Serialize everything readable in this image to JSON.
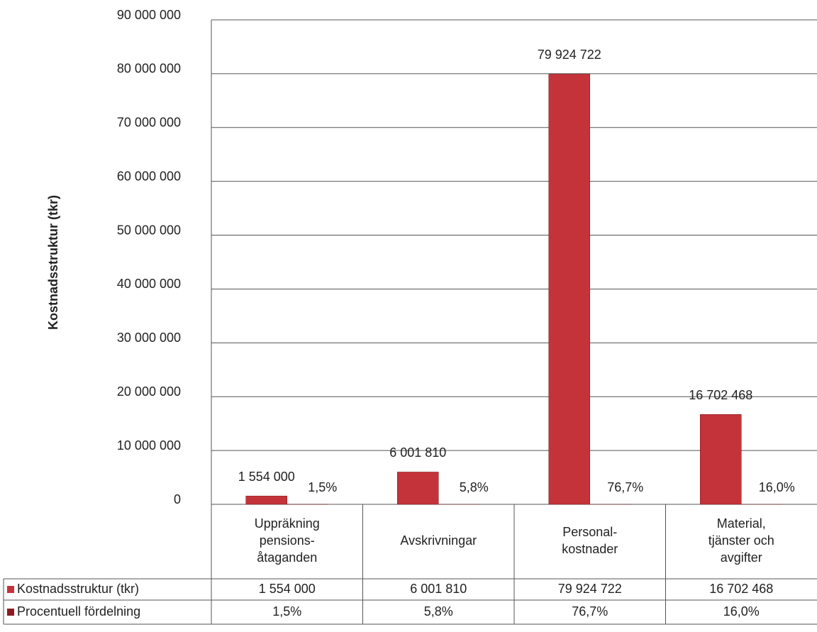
{
  "chart_data": {
    "type": "bar",
    "y_axis_label": "Kostnadsstruktur  (tkr)",
    "categories": [
      [
        "Uppräkning",
        "pensions-",
        "åtaganden"
      ],
      [
        "Avskrivningar"
      ],
      [
        "Personal-",
        "kostnader"
      ],
      [
        "Material,",
        "tjänster och",
        "avgifter"
      ]
    ],
    "series": [
      {
        "name": "Kostnadsstruktur (tkr)",
        "color": "#c4333a",
        "values": [
          1554000,
          6001810,
          79924722,
          16702468
        ],
        "value_labels": [
          "1 554 000",
          "6 001 810",
          "79 924 722",
          "16 702 468"
        ]
      },
      {
        "name": "Procentuell fördelning",
        "color": "#8c1c22",
        "values": [
          1.5,
          5.8,
          76.7,
          16.0
        ],
        "value_labels": [
          "1,5%",
          "5,8%",
          "76,7%",
          "16,0%"
        ]
      }
    ],
    "ylim": [
      0,
      90000000
    ],
    "yticks": [
      0,
      {
        "value": 10000000,
        "label": "10 000 000"
      },
      {
        "value": 20000000,
        "label": "20 000 000"
      },
      {
        "value": 30000000,
        "label": "30 000 000"
      },
      {
        "value": 40000000,
        "label": "40 000 000"
      },
      {
        "value": 50000000,
        "label": "50 000 000"
      },
      {
        "value": 60000000,
        "label": "60 000 000"
      },
      {
        "value": 70000000,
        "label": "70 000 000"
      },
      {
        "value": 80000000,
        "label": "80 000 000"
      },
      {
        "value": 90000000,
        "label": "90 000 000"
      }
    ],
    "grid": true,
    "data_table": true
  }
}
